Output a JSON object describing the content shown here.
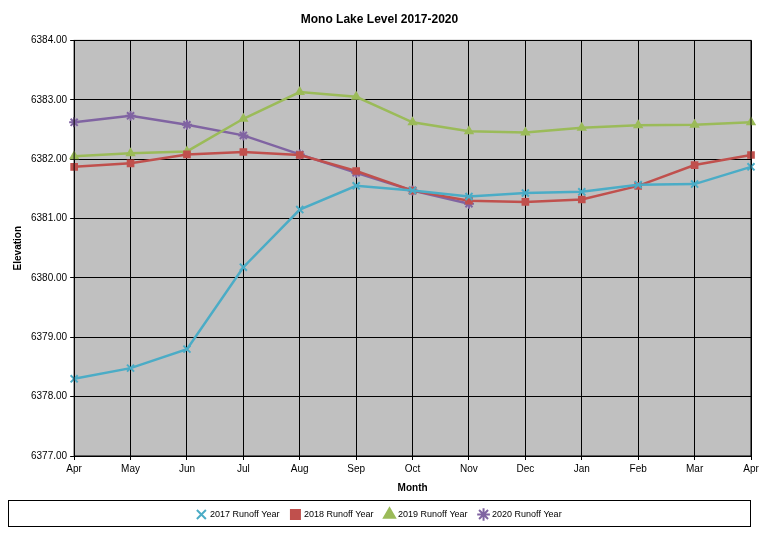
{
  "chart_data": {
    "type": "line",
    "title": "Mono Lake Level 2017-2020",
    "x_label": "Month",
    "y_label": "Elevation",
    "categories": [
      "Apr",
      "May",
      "Jun",
      "Jul",
      "Aug",
      "Sep",
      "Oct",
      "Nov",
      "Dec",
      "Jan",
      "Feb",
      "Mar",
      "Apr"
    ],
    "series": [
      {
        "name": "2017 Runoff Year",
        "color": "#4BACC6",
        "marker": "x",
        "values": [
          6378.3,
          6378.48,
          6378.8,
          6380.18,
          6381.15,
          6381.55,
          6381.47,
          6381.37,
          6381.43,
          6381.45,
          6381.57,
          6381.58,
          6381.87
        ]
      },
      {
        "name": "2018 Runoff Year",
        "color": "#C0504D",
        "marker": "square",
        "values": [
          6381.87,
          6381.93,
          6382.08,
          6382.12,
          6382.07,
          6381.8,
          6381.47,
          6381.3,
          6381.28,
          6381.32,
          6381.55,
          6381.9,
          6382.07
        ]
      },
      {
        "name": "2019 Runoff Year",
        "color": "#9BBB59",
        "marker": "triangle",
        "values": [
          6382.05,
          6382.1,
          6382.13,
          6382.68,
          6383.13,
          6383.05,
          6382.62,
          6382.47,
          6382.45,
          6382.53,
          6382.57,
          6382.58,
          6382.62
        ]
      },
      {
        "name": "2020 Runoff Year",
        "color": "#8064A2",
        "marker": "star",
        "values": [
          6382.62,
          6382.73,
          6382.58,
          6382.4,
          6382.08,
          6381.77,
          6381.47,
          6381.25,
          null,
          null,
          null,
          null,
          null
        ]
      }
    ],
    "ylim": [
      6377,
      6384
    ],
    "yticks": [
      {
        "value": 6377,
        "label": "6377.00"
      },
      {
        "value": 6378,
        "label": "6378.00"
      },
      {
        "value": 6379,
        "label": "6379.00"
      },
      {
        "value": 6380,
        "label": "6380.00"
      },
      {
        "value": 6381,
        "label": "6381.00"
      },
      {
        "value": 6382,
        "label": "6382.00"
      },
      {
        "value": 6383,
        "label": "6383.00"
      },
      {
        "value": 6384,
        "label": "6384.00"
      }
    ],
    "grid": true,
    "legend": "bottom"
  }
}
